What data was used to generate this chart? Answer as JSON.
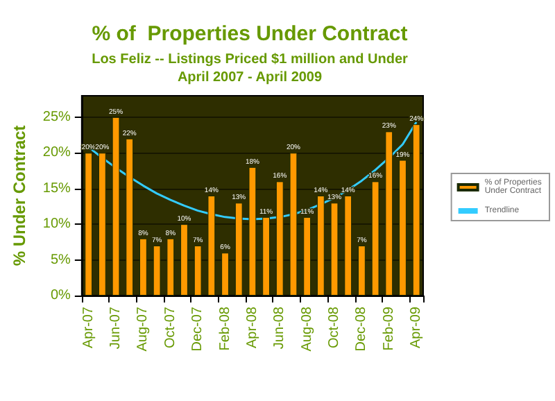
{
  "chart_data": {
    "type": "bar",
    "title": "% of  Properties Under Contract",
    "subtitle": "Los Feliz -- Listings Priced $1 million and Under\nApril 2007 - April 2009",
    "ylabel": "% Under Contract",
    "categories": [
      "Apr-07",
      null,
      "Jun-07",
      null,
      "Aug-07",
      null,
      "Oct-07",
      null,
      "Dec-07",
      null,
      "Feb-08",
      null,
      "Apr-08",
      null,
      "Jun-08",
      null,
      "Aug-08",
      null,
      "Oct-08",
      null,
      "Dec-08",
      null,
      "Feb-09",
      null,
      "Apr-09"
    ],
    "series": [
      {
        "name": "% of Properties Under Contract",
        "color": "#ff9900",
        "values": [
          20,
          20,
          25,
          22,
          8,
          7,
          8,
          10,
          7,
          14,
          6,
          13,
          18,
          11,
          16,
          20,
          11,
          14,
          13,
          14,
          7,
          16,
          23,
          19,
          24
        ],
        "value_labels": [
          "20%",
          "20%",
          "25%",
          "22%",
          "8%",
          "7%",
          "8%",
          "10%",
          "7%",
          "14%",
          "6%",
          "13%",
          "18%",
          "11%",
          "16%",
          "20%",
          "11%",
          "14%",
          "13%",
          "14%",
          "7%",
          "16%",
          "23%",
          "19%",
          "24%"
        ]
      },
      {
        "name": "Trendline",
        "type": "line",
        "color": "#33ccff",
        "marker": "none",
        "values": [
          20.8,
          19.3,
          17.9,
          16.6,
          15.4,
          14.3,
          13.4,
          12.6,
          11.9,
          11.4,
          11.0,
          10.8,
          10.7,
          10.8,
          11.0,
          11.4,
          12.0,
          12.8,
          13.7,
          14.8,
          16.1,
          17.6,
          19.3,
          21.2,
          24.3
        ]
      }
    ],
    "ylim": [
      0,
      28
    ],
    "yticks": [
      {
        "value": 0,
        "label": "0%"
      },
      {
        "value": 5,
        "label": "5%"
      },
      {
        "value": 10,
        "label": "10%"
      },
      {
        "value": 15,
        "label": "15%"
      },
      {
        "value": 20,
        "label": "20%"
      },
      {
        "value": 25,
        "label": "25%"
      }
    ],
    "grid": "y",
    "legend": "right"
  }
}
